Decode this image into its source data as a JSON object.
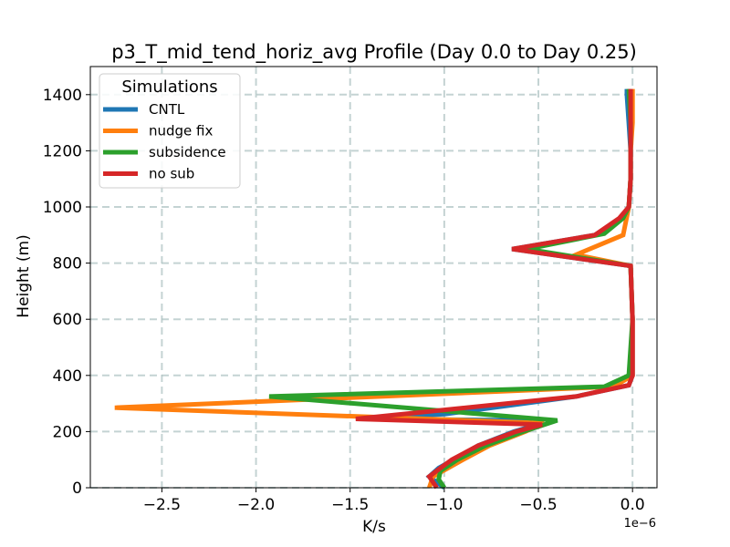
{
  "chart_data": {
    "type": "line",
    "title": "p3_T_mid_tend_horiz_avg Profile (Day 0.0 to Day 0.25)",
    "xlabel": "K/s",
    "ylabel": "Height (m)",
    "x_offset_label": "1e−6",
    "xlim": [
      -2.88,
      0.13
    ],
    "ylim": [
      0,
      1500
    ],
    "xticks": [
      -2.5,
      -2.0,
      -1.5,
      -1.0,
      -0.5,
      0.0
    ],
    "xtick_labels": [
      "−2.5",
      "−2.0",
      "−1.5",
      "−1.0",
      "−0.5",
      "0.0"
    ],
    "yticks": [
      0,
      200,
      400,
      600,
      800,
      1000,
      1200,
      1400
    ],
    "ytick_labels": [
      "0",
      "200",
      "400",
      "600",
      "800",
      "1000",
      "1200",
      "1400"
    ],
    "grid": true,
    "legend": {
      "title": "Simulations",
      "position": "top-left"
    },
    "series": [
      {
        "name": "CNTL",
        "color": "#1f77b4",
        "points": [
          [
            -1.0,
            0
          ],
          [
            -1.08,
            40
          ],
          [
            -1.03,
            70
          ],
          [
            -0.95,
            100
          ],
          [
            -0.82,
            150
          ],
          [
            -0.63,
            200
          ],
          [
            -0.5,
            225
          ],
          [
            -0.58,
            240
          ],
          [
            -1.46,
            245
          ],
          [
            -1.0,
            262
          ],
          [
            -0.3,
            325
          ],
          [
            -0.02,
            365
          ],
          [
            0.0,
            400
          ],
          [
            0.0,
            600
          ],
          [
            -0.01,
            790
          ],
          [
            -0.64,
            850
          ],
          [
            -0.2,
            900
          ],
          [
            -0.05,
            960
          ],
          [
            -0.02,
            1000
          ],
          [
            -0.01,
            1100
          ],
          [
            -0.01,
            1200
          ],
          [
            -0.02,
            1300
          ],
          [
            -0.03,
            1400
          ],
          [
            -0.03,
            1420
          ]
        ]
      },
      {
        "name": "nudge fix",
        "color": "#ff7f0e",
        "points": [
          [
            -1.08,
            0
          ],
          [
            -1.06,
            40
          ],
          [
            -0.98,
            70
          ],
          [
            -0.9,
            100
          ],
          [
            -0.76,
            150
          ],
          [
            -0.57,
            200
          ],
          [
            -0.47,
            230
          ],
          [
            -2.75,
            285
          ],
          [
            -0.1,
            360
          ],
          [
            0.0,
            400
          ],
          [
            0.0,
            600
          ],
          [
            -0.01,
            790
          ],
          [
            -0.3,
            830
          ],
          [
            -0.05,
            900
          ],
          [
            -0.02,
            1000
          ],
          [
            -0.01,
            1100
          ],
          [
            -0.01,
            1200
          ],
          [
            0.0,
            1300
          ],
          [
            0.0,
            1420
          ]
        ]
      },
      {
        "name": "subsidence",
        "color": "#2ca02c",
        "points": [
          [
            -1.0,
            0
          ],
          [
            -1.03,
            30
          ],
          [
            -1.02,
            60
          ],
          [
            -0.93,
            100
          ],
          [
            -0.78,
            150
          ],
          [
            -0.58,
            200
          ],
          [
            -0.4,
            240
          ],
          [
            -1.93,
            325
          ],
          [
            -0.15,
            360
          ],
          [
            -0.02,
            400
          ],
          [
            0.0,
            600
          ],
          [
            -0.01,
            790
          ],
          [
            -0.56,
            850
          ],
          [
            -0.15,
            905
          ],
          [
            -0.05,
            960
          ],
          [
            -0.02,
            1000
          ],
          [
            -0.01,
            1100
          ],
          [
            -0.01,
            1200
          ],
          [
            -0.01,
            1300
          ],
          [
            -0.02,
            1420
          ]
        ]
      },
      {
        "name": "no sub",
        "color": "#d62728",
        "points": [
          [
            -1.04,
            0
          ],
          [
            -1.08,
            40
          ],
          [
            -1.02,
            70
          ],
          [
            -0.96,
            100
          ],
          [
            -0.82,
            150
          ],
          [
            -0.62,
            200
          ],
          [
            -0.48,
            225
          ],
          [
            -1.47,
            245
          ],
          [
            -0.3,
            325
          ],
          [
            -0.02,
            365
          ],
          [
            0.0,
            400
          ],
          [
            0.0,
            600
          ],
          [
            -0.01,
            790
          ],
          [
            -0.64,
            850
          ],
          [
            -0.2,
            900
          ],
          [
            -0.07,
            960
          ],
          [
            -0.02,
            1000
          ],
          [
            -0.01,
            1100
          ],
          [
            -0.01,
            1200
          ],
          [
            -0.01,
            1300
          ],
          [
            -0.01,
            1420
          ]
        ]
      }
    ]
  }
}
